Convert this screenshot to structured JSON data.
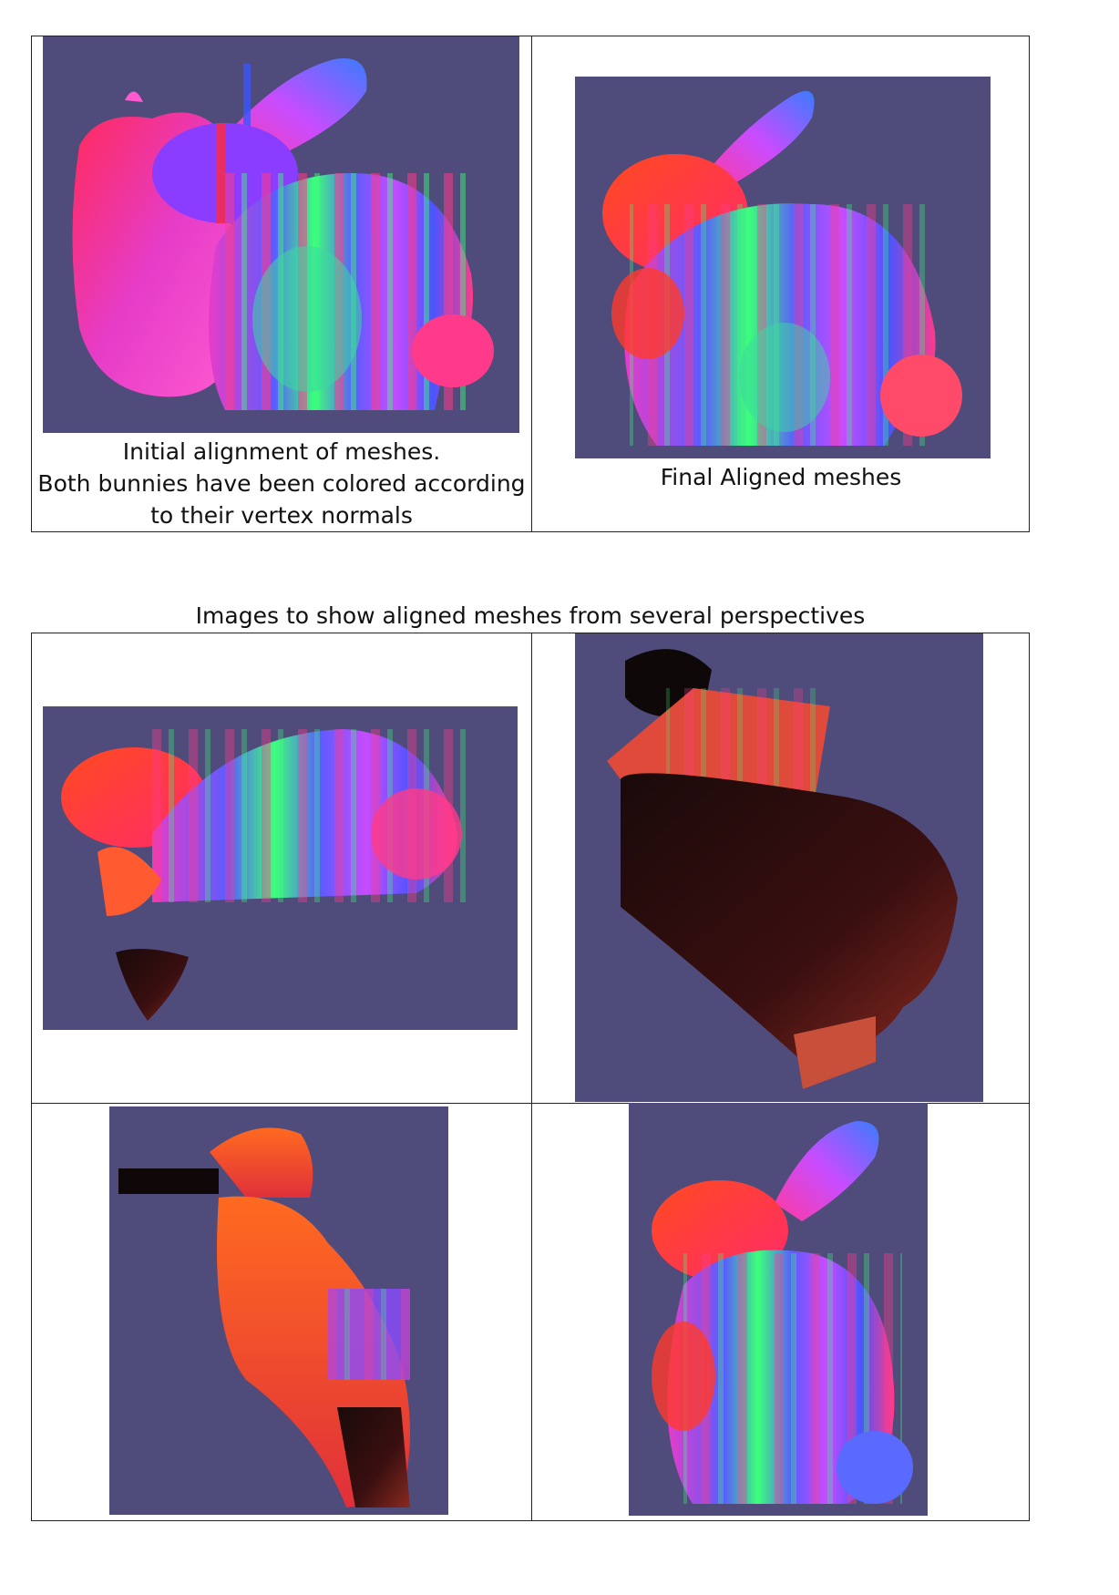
{
  "top_table": {
    "cell_1": {
      "image_icon": "mesh-render-initial",
      "caption_lines": [
        "Initial alignment of meshes.",
        "Both bunnies have been colored according",
        "to their vertex normals"
      ]
    },
    "cell_2": {
      "image_icon": "mesh-render-final",
      "caption": "Final Aligned meshes"
    }
  },
  "section_title": "Images to show aligned meshes from several perspectives",
  "perspectives": [
    {
      "image_icon": "mesh-render-perspective-1"
    },
    {
      "image_icon": "mesh-render-perspective-2"
    },
    {
      "image_icon": "mesh-render-perspective-3"
    },
    {
      "image_icon": "mesh-render-perspective-4"
    }
  ],
  "colors": {
    "render_background": "#4f4b7b",
    "mesh_red": "#ff3a2a",
    "mesh_magenta": "#e63cc8",
    "mesh_blue": "#4a55ff",
    "mesh_green": "#3cff7a"
  }
}
